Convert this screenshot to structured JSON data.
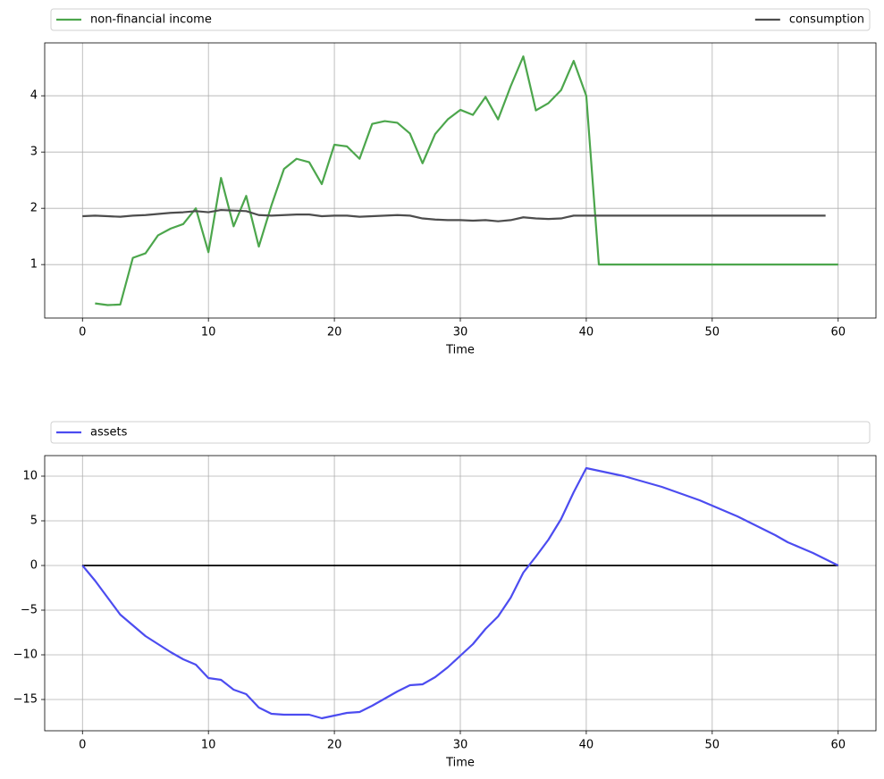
{
  "chart_data": [
    {
      "type": "line",
      "xlabel": "Time",
      "xlim": [
        -3,
        63
      ],
      "xticks": [
        0,
        10,
        20,
        30,
        40,
        50,
        60
      ],
      "ylim": [
        0.05,
        4.94
      ],
      "yticks": [
        1,
        2,
        3,
        4
      ],
      "grid": true,
      "legend": "above-expand",
      "series": [
        {
          "name": "non-financial income",
          "color": "#4ca64c",
          "x": [
            1,
            2,
            3,
            4,
            5,
            6,
            7,
            8,
            9,
            10,
            11,
            12,
            13,
            14,
            15,
            16,
            17,
            18,
            19,
            20,
            21,
            22,
            23,
            24,
            25,
            26,
            27,
            28,
            29,
            30,
            31,
            32,
            33,
            34,
            35,
            36,
            37,
            38,
            39,
            40,
            41,
            42,
            43,
            44,
            45,
            46,
            47,
            48,
            49,
            50,
            51,
            52,
            53,
            54,
            55,
            56,
            57,
            58,
            59,
            60
          ],
          "values": [
            0.31,
            0.28,
            0.29,
            1.12,
            1.2,
            1.52,
            1.64,
            1.72,
            2.0,
            1.22,
            2.54,
            1.68,
            2.22,
            1.32,
            2.05,
            2.7,
            2.88,
            2.82,
            2.43,
            3.13,
            3.1,
            2.88,
            3.5,
            3.55,
            3.52,
            3.33,
            2.8,
            3.32,
            3.58,
            3.75,
            3.66,
            3.98,
            3.58,
            4.17,
            4.7,
            3.74,
            3.87,
            4.1,
            4.62,
            4.0,
            1,
            1,
            1,
            1,
            1,
            1,
            1,
            1,
            1,
            1,
            1,
            1,
            1,
            1,
            1,
            1,
            1,
            1,
            1,
            1
          ]
        },
        {
          "name": "consumption",
          "color": "#4d4d4d",
          "x": [
            0,
            1,
            2,
            3,
            4,
            5,
            6,
            7,
            8,
            9,
            10,
            11,
            12,
            13,
            14,
            15,
            16,
            17,
            18,
            19,
            20,
            21,
            22,
            23,
            24,
            25,
            26,
            27,
            28,
            29,
            30,
            31,
            32,
            33,
            34,
            35,
            36,
            37,
            38,
            39,
            40,
            41,
            42,
            43,
            44,
            45,
            46,
            47,
            48,
            49,
            50,
            51,
            52,
            53,
            54,
            55,
            56,
            57,
            58,
            59
          ],
          "values": [
            1.86,
            1.87,
            1.86,
            1.85,
            1.87,
            1.88,
            1.9,
            1.92,
            1.93,
            1.95,
            1.93,
            1.97,
            1.96,
            1.95,
            1.88,
            1.87,
            1.88,
            1.89,
            1.89,
            1.86,
            1.87,
            1.87,
            1.85,
            1.86,
            1.87,
            1.88,
            1.87,
            1.82,
            1.8,
            1.79,
            1.79,
            1.78,
            1.79,
            1.77,
            1.79,
            1.84,
            1.82,
            1.81,
            1.82,
            1.87,
            1.87,
            1.87,
            1.87,
            1.87,
            1.87,
            1.87,
            1.87,
            1.87,
            1.87,
            1.87,
            1.87,
            1.87,
            1.87,
            1.87,
            1.87,
            1.87,
            1.87,
            1.87,
            1.87,
            1.87
          ]
        }
      ]
    },
    {
      "type": "line",
      "xlabel": "Time",
      "xlim": [
        -3,
        63
      ],
      "xticks": [
        0,
        10,
        20,
        30,
        40,
        50,
        60
      ],
      "ylim": [
        -18.5,
        12.3
      ],
      "yticks": [
        {
          "value": -15,
          "label": "−15"
        },
        {
          "value": -10,
          "label": "−10"
        },
        {
          "value": -5,
          "label": "−5"
        },
        0,
        5,
        10
      ],
      "grid": true,
      "legend": "above-expand",
      "hlines": [
        0
      ],
      "hline_color": "#000000",
      "series": [
        {
          "name": "assets",
          "color": "#4c4cf0",
          "x": [
            0,
            1,
            2,
            3,
            4,
            5,
            6,
            7,
            8,
            9,
            10,
            11,
            12,
            13,
            14,
            15,
            16,
            17,
            18,
            19,
            20,
            21,
            22,
            23,
            24,
            25,
            26,
            27,
            28,
            29,
            30,
            31,
            32,
            33,
            34,
            35,
            36,
            37,
            38,
            39,
            40,
            41,
            42,
            43,
            44,
            45,
            46,
            47,
            48,
            49,
            50,
            51,
            52,
            53,
            54,
            55,
            56,
            57,
            58,
            59,
            60
          ],
          "values": [
            0,
            -1.7,
            -3.6,
            -5.5,
            -6.7,
            -7.9,
            -8.8,
            -9.7,
            -10.5,
            -11.1,
            -12.6,
            -12.8,
            -13.9,
            -14.4,
            -15.9,
            -16.6,
            -16.7,
            -16.7,
            -16.7,
            -17.1,
            -16.8,
            -16.5,
            -16.4,
            -15.7,
            -14.9,
            -14.1,
            -13.4,
            -13.3,
            -12.5,
            -11.4,
            -10.1,
            -8.8,
            -7.1,
            -5.7,
            -3.6,
            -0.8,
            1.0,
            2.9,
            5.2,
            8.2,
            10.9,
            10.6,
            10.3,
            10.0,
            9.6,
            9.2,
            8.8,
            8.3,
            7.8,
            7.3,
            6.7,
            6.1,
            5.5,
            4.8,
            4.1,
            3.4,
            2.6,
            2.0,
            1.4,
            0.7,
            0
          ]
        }
      ]
    }
  ]
}
